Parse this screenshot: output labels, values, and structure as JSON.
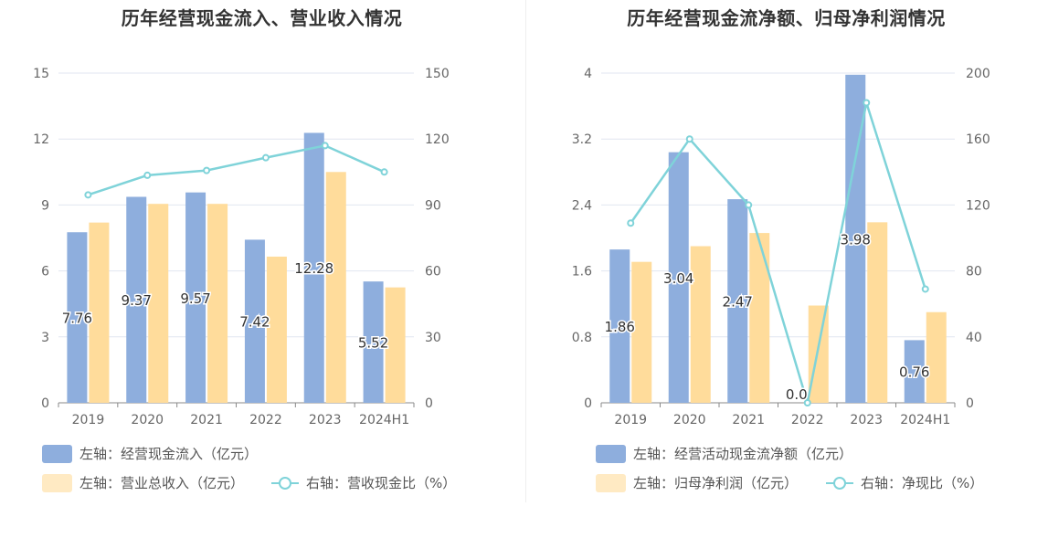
{
  "colors": {
    "bar_primary": "#8eaedd",
    "bar_secondary": "#ffdc9b",
    "line": "#7fd3d9",
    "grid": "#e1e6f0",
    "axis": "#888888"
  },
  "chart_data": [
    {
      "type": "bar",
      "title": "历年经营现金流入、营业收入情况",
      "categories": [
        "2019",
        "2020",
        "2021",
        "2022",
        "2023",
        "2024H1"
      ],
      "ylim_left": [
        0,
        15
      ],
      "yticks_left": [
        "0",
        "3",
        "6",
        "9",
        "12",
        "15"
      ],
      "ylim_right": [
        0,
        150
      ],
      "yticks_right": [
        "0",
        "30",
        "60",
        "90",
        "120",
        "150"
      ],
      "grid": true,
      "legend_position": "bottom",
      "series": [
        {
          "name": "左轴：经营现金流入（亿元）",
          "kind": "bar",
          "axis": "left",
          "values": [
            7.76,
            9.37,
            9.57,
            7.42,
            12.28,
            5.52
          ],
          "labels": [
            "7.76",
            "9.37",
            "9.57",
            "7.42",
            "12.28",
            "5.52"
          ]
        },
        {
          "name": "左轴：营业总收入（亿元）",
          "kind": "bar",
          "axis": "left",
          "values": [
            8.2,
            9.05,
            9.05,
            6.65,
            10.5,
            5.25
          ]
        },
        {
          "name": "右轴：营收现金比（%）",
          "kind": "line",
          "axis": "right",
          "values": [
            94.6,
            103.5,
            105.7,
            111.5,
            117.0,
            105.0
          ]
        }
      ]
    },
    {
      "type": "bar",
      "title": "历年经营现金流净额、归母净利润情况",
      "categories": [
        "2019",
        "2020",
        "2021",
        "2022",
        "2023",
        "2024H1"
      ],
      "ylim_left": [
        0,
        4
      ],
      "yticks_left": [
        "0",
        "0.8",
        "1.6",
        "2.4",
        "3.2",
        "4"
      ],
      "ylim_right": [
        0,
        200
      ],
      "yticks_right": [
        "0",
        "40",
        "80",
        "120",
        "160",
        "200"
      ],
      "grid": true,
      "legend_position": "bottom",
      "series": [
        {
          "name": "左轴：经营活动现金流净额（亿元）",
          "kind": "bar",
          "axis": "left",
          "values": [
            1.86,
            3.04,
            2.47,
            0.0,
            3.98,
            0.76
          ],
          "labels": [
            "1.86",
            "3.04",
            "2.47",
            "0.0",
            "3.98",
            "0.76"
          ]
        },
        {
          "name": "左轴：归母净利润（亿元）",
          "kind": "bar",
          "axis": "left",
          "values": [
            1.71,
            1.9,
            2.06,
            1.18,
            2.19,
            1.1
          ]
        },
        {
          "name": "右轴：净现比（%）",
          "kind": "line",
          "axis": "right",
          "values": [
            109,
            160,
            120,
            0,
            182,
            69
          ]
        }
      ]
    }
  ]
}
